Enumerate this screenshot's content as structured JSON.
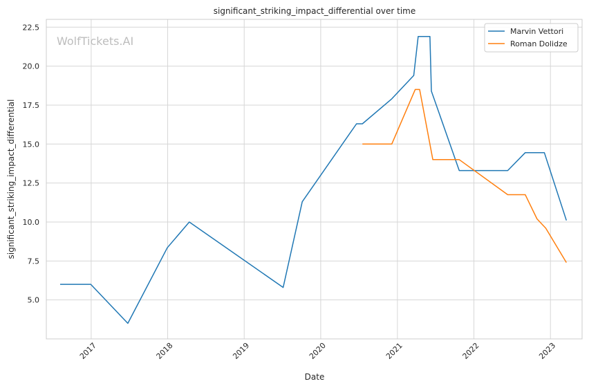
{
  "chart_data": {
    "type": "line",
    "title": "significant_striking_impact_differential over time",
    "xlabel": "Date",
    "ylabel": "significant_striking_impact_differential",
    "watermark": "WolfTickets.AI",
    "x_ticks": [
      "2017",
      "2018",
      "2019",
      "2020",
      "2021",
      "2022",
      "2023"
    ],
    "y_ticks": [
      "5.0",
      "7.5",
      "10.0",
      "12.5",
      "15.0",
      "17.5",
      "20.0",
      "22.5"
    ],
    "xlim": [
      "2016-06-01",
      "2023-06-01"
    ],
    "ylim": [
      2.5,
      23
    ],
    "grid": true,
    "legend_position": "top-right",
    "series": [
      {
        "name": "Marvin Vettori",
        "color": "#1f77b4",
        "points": [
          [
            "2016-08-06",
            6.0
          ],
          [
            "2016-12-30",
            6.0
          ],
          [
            "2017-06-25",
            3.5
          ],
          [
            "2017-12-30",
            8.35
          ],
          [
            "2018-04-14",
            10.0
          ],
          [
            "2019-07-06",
            5.8
          ],
          [
            "2019-10-05",
            11.3
          ],
          [
            "2020-06-20",
            16.3
          ],
          [
            "2020-07-18",
            16.3
          ],
          [
            "2020-12-05",
            17.9
          ],
          [
            "2021-03-20",
            19.4
          ],
          [
            "2021-04-10",
            21.9
          ],
          [
            "2021-06-05",
            21.9
          ],
          [
            "2021-06-12",
            18.4
          ],
          [
            "2021-10-23",
            13.3
          ],
          [
            "2022-06-11",
            13.3
          ],
          [
            "2022-09-03",
            14.45
          ],
          [
            "2022-12-03",
            14.45
          ],
          [
            "2023-03-18",
            10.1
          ]
        ]
      },
      {
        "name": "Roman Dolidze",
        "color": "#ff7f0e",
        "points": [
          [
            "2020-07-18",
            15.0
          ],
          [
            "2020-12-05",
            15.0
          ],
          [
            "2021-03-27",
            18.5
          ],
          [
            "2021-04-17",
            18.5
          ],
          [
            "2021-06-19",
            14.0
          ],
          [
            "2021-10-23",
            14.0
          ],
          [
            "2022-06-11",
            11.75
          ],
          [
            "2022-09-03",
            11.75
          ],
          [
            "2022-10-29",
            10.2
          ],
          [
            "2022-12-10",
            9.6
          ],
          [
            "2023-03-18",
            7.4
          ]
        ]
      }
    ]
  }
}
